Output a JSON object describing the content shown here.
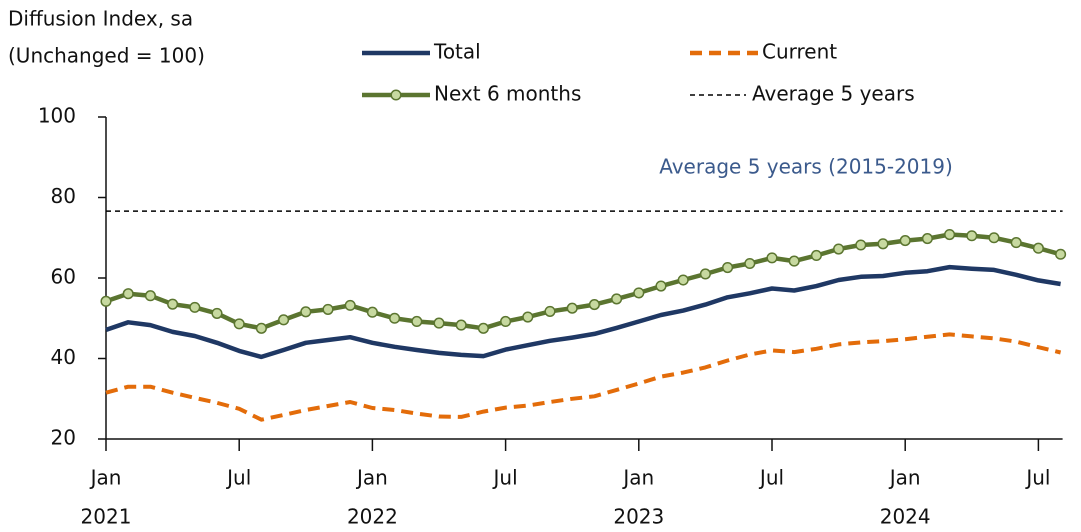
{
  "chart_data": {
    "type": "line",
    "y_axis_label": "Diffusion Index, sa",
    "y_axis_sublabel": "(Unchanged = 100)",
    "categories": [
      "Jan",
      null,
      null,
      null,
      null,
      null,
      "Jul",
      null,
      null,
      null,
      null,
      null,
      "Jan",
      null,
      null,
      null,
      null,
      null,
      "Jul",
      null,
      null,
      null,
      null,
      null,
      "Jan",
      null,
      null,
      null,
      null,
      null,
      "Jul",
      null,
      null,
      null,
      null,
      null,
      "Jan",
      null,
      null,
      null,
      null,
      null,
      "Jul",
      null
    ],
    "x_years": [
      "2021",
      "2022",
      "2023",
      "2024"
    ],
    "ylim": [
      20,
      100
    ],
    "yticks": [
      20,
      40,
      60,
      80,
      100
    ],
    "series": [
      {
        "name": "Total",
        "color": "#1f3864",
        "style": "solid",
        "values": [
          47.1,
          49.0,
          48.3,
          46.6,
          45.6,
          43.9,
          41.9,
          40.4,
          42.1,
          43.9,
          44.6,
          45.3,
          43.9,
          42.9,
          42.1,
          41.4,
          40.9,
          40.6,
          42.2,
          43.3,
          44.4,
          45.2,
          46.1,
          47.6,
          49.2,
          50.8,
          51.9,
          53.4,
          55.2,
          56.2,
          57.4,
          56.9,
          58.0,
          59.5,
          60.3,
          60.5,
          61.3,
          61.7,
          62.7,
          62.3,
          62.0,
          60.8,
          59.4,
          58.5
        ]
      },
      {
        "name": "Current",
        "color": "#e36c0a",
        "style": "dashed",
        "values": [
          31.5,
          33.0,
          33.0,
          31.5,
          30.2,
          29.0,
          27.5,
          24.8,
          26.0,
          27.2,
          28.2,
          29.2,
          27.7,
          27.2,
          26.3,
          25.6,
          25.5,
          26.8,
          27.8,
          28.3,
          29.2,
          30.0,
          30.6,
          32.2,
          33.8,
          35.5,
          36.5,
          37.8,
          39.5,
          41.0,
          42.0,
          41.6,
          42.4,
          43.5,
          44.0,
          44.3,
          44.8,
          45.4,
          46.0,
          45.5,
          45.0,
          44.2,
          42.8,
          41.5
        ]
      },
      {
        "name": "Next 6 months",
        "color": "#5b7530",
        "marker_fill": "#c7d9a0",
        "style": "marker",
        "values": [
          54.2,
          56.1,
          55.6,
          53.5,
          52.7,
          51.2,
          48.6,
          47.5,
          49.6,
          51.6,
          52.2,
          53.2,
          51.5,
          50.0,
          49.2,
          48.8,
          48.3,
          47.5,
          49.2,
          50.3,
          51.7,
          52.5,
          53.4,
          54.8,
          56.3,
          58.0,
          59.5,
          61.0,
          62.6,
          63.6,
          65.0,
          64.2,
          65.6,
          67.2,
          68.2,
          68.5,
          69.3,
          69.8,
          70.8,
          70.5,
          70.0,
          68.8,
          67.4,
          65.9
        ]
      }
    ],
    "average": {
      "name": "Average 5 years",
      "value": 76.6,
      "color": "#000000",
      "annotation": "Average 5 years (2015-2019)",
      "annotation_color": "#3b5a8c"
    }
  }
}
